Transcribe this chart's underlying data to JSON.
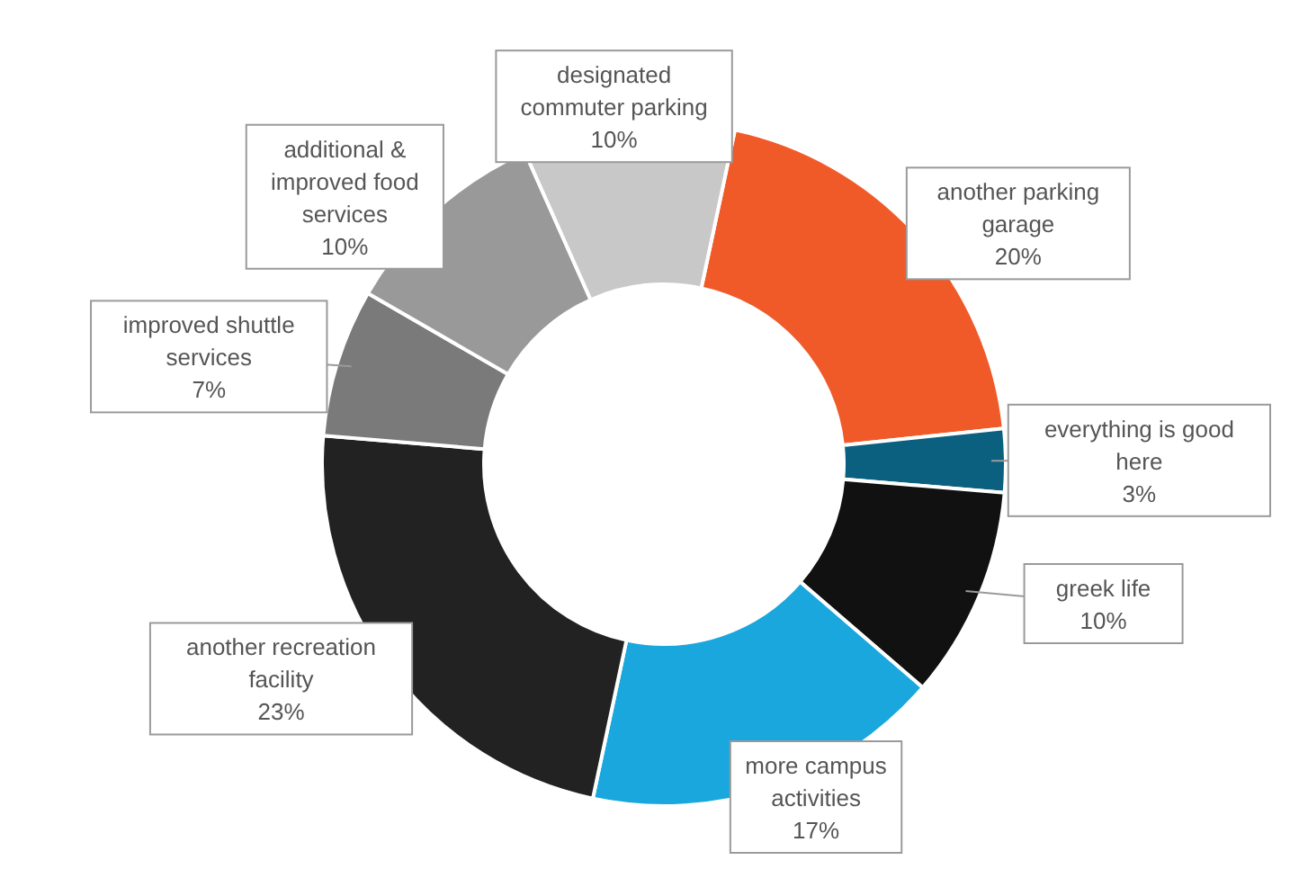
{
  "chart_data": {
    "type": "donut",
    "categories": [
      "another parking garage",
      "everything is good here",
      "greek life",
      "more campus activities",
      "another recreation facility",
      "improved shuttle services",
      "additional & improved food services",
      "designated commuter parking"
    ],
    "values": [
      20,
      3,
      10,
      17,
      23,
      7,
      10,
      10
    ],
    "value_labels": [
      "20%",
      "3%",
      "10%",
      "17%",
      "23%",
      "7%",
      "10%",
      "10%"
    ],
    "colors": [
      "#f05a28",
      "#0b5f7f",
      "#111111",
      "#1aa7dd",
      "#222222",
      "#7a7a7a",
      "#999999",
      "#c8c8c8"
    ],
    "legend": false
  }
}
